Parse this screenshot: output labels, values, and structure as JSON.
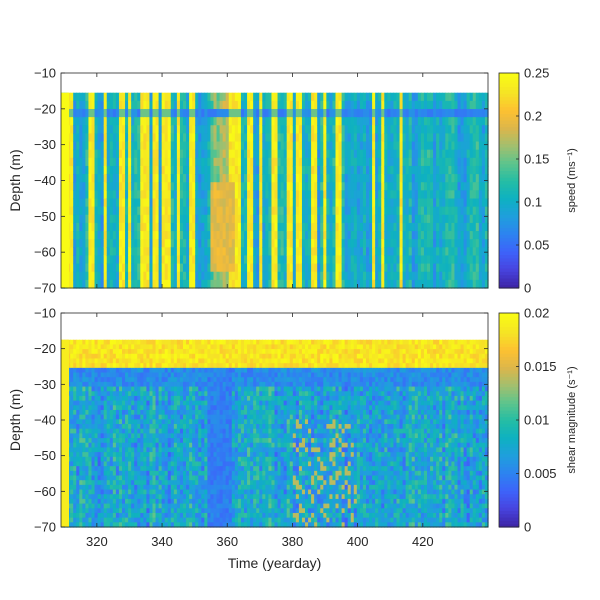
{
  "colors": {
    "colormap": [
      "#3e26a8",
      "#4744e0",
      "#3d64fa",
      "#2d84f0",
      "#1f9fdc",
      "#0eb1c1",
      "#25bda4",
      "#5ec48c",
      "#a3bf6e",
      "#ddb64a",
      "#fdc131",
      "#f5e425",
      "#f9fb15"
    ],
    "axis": "#262626"
  },
  "chart_data": [
    {
      "type": "heatmap",
      "name": "speed",
      "ylabel": "Depth (m)",
      "xlabel": "",
      "xlim": [
        309,
        440
      ],
      "ylim": [
        -70,
        -10
      ],
      "yticks": [
        -10,
        -20,
        -30,
        -40,
        -50,
        -60,
        -70
      ],
      "ytick_labels": [
        "−10",
        "−20",
        "−30",
        "−40",
        "−50",
        "−60",
        "−70"
      ],
      "xticks": [],
      "data_depth_top": -15.5,
      "colorbar": {
        "label": "speed (ms⁻¹)",
        "limits": [
          0,
          0.25
        ],
        "ticks": [
          0,
          0.05,
          0.1,
          0.15,
          0.2,
          0.25
        ],
        "tick_labels": [
          "0",
          "0.05",
          "0.1",
          "0.15",
          "0.2",
          "0.25"
        ]
      },
      "yellow_bands_yeardays": [
        [
          311,
          313
        ],
        [
          317.5,
          319.5
        ],
        [
          322,
          323
        ],
        [
          327,
          329
        ],
        [
          330,
          330.8
        ],
        [
          333,
          336
        ],
        [
          337,
          338.5
        ],
        [
          340,
          343
        ],
        [
          344.5,
          345.5
        ],
        [
          348,
          350
        ],
        [
          360,
          364
        ],
        [
          366.5,
          367.5
        ],
        [
          370,
          371
        ],
        [
          373.5,
          375
        ],
        [
          378,
          380
        ],
        [
          381.5,
          383
        ],
        [
          386,
          387.5
        ],
        [
          389.5,
          390.5
        ],
        [
          393.5,
          395
        ],
        [
          404,
          405
        ],
        [
          407,
          408
        ],
        [
          412.5,
          413.5
        ]
      ],
      "notes": "speed is mostly 0.05–0.1 ms⁻¹ with vertical bands reaching ≥0.2 ms⁻¹; weak layer near −21 m; broad orange feature around yearday 360"
    },
    {
      "type": "heatmap",
      "name": "shear magnitude",
      "ylabel": "Depth (m)",
      "xlabel": "Time (yearday)",
      "xlim": [
        309,
        440
      ],
      "ylim": [
        -70,
        -10
      ],
      "yticks": [
        -10,
        -20,
        -30,
        -40,
        -50,
        -60,
        -70
      ],
      "ytick_labels": [
        "−10",
        "−20",
        "−30",
        "−40",
        "−50",
        "−60",
        "−70"
      ],
      "xticks": [
        320,
        340,
        360,
        380,
        400,
        420
      ],
      "xtick_labels": [
        "320",
        "340",
        "360",
        "380",
        "400",
        "420"
      ],
      "data_depth_top": -17.5,
      "colorbar": {
        "label": "shear magnitude (s⁻¹)",
        "limits": [
          0,
          0.02
        ],
        "ticks": [
          0,
          0.005,
          0.01,
          0.015,
          0.02
        ],
        "tick_labels": [
          "0",
          "0.005",
          "0.01",
          "0.015",
          "0.02"
        ]
      },
      "high_shear_layer_depths": [
        -18,
        -25
      ],
      "low_shear_gap_yeardays": [
        354,
        361
      ],
      "notes": "strongest shear (≥0.02 s⁻¹) in the layer between −18 and −25 m; interior values mostly 0.003–0.008 s⁻¹"
    }
  ]
}
